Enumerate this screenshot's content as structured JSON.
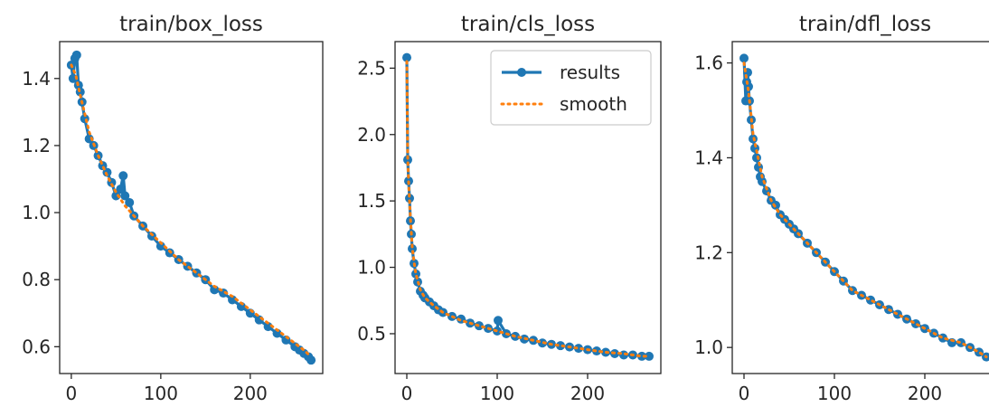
{
  "chart_data": [
    {
      "type": "line",
      "title": "train/box_loss",
      "xlabel": "",
      "ylabel": "",
      "xlim": [
        -13,
        281
      ],
      "ylim": [
        0.52,
        1.51
      ],
      "xticks": [
        0,
        100,
        200
      ],
      "yticks": [
        0.6,
        0.8,
        1.0,
        1.2,
        1.4
      ],
      "ytick_labels": [
        "0.6",
        "0.8",
        "1.0",
        "1.2",
        "1.4"
      ],
      "legend": null,
      "series": [
        {
          "name": "results",
          "style": "line-with-markers",
          "x": [
            0,
            2,
            4,
            6,
            8,
            10,
            12,
            15,
            20,
            25,
            30,
            35,
            40,
            45,
            50,
            55,
            58,
            60,
            65,
            70,
            80,
            90,
            100,
            110,
            120,
            130,
            140,
            150,
            160,
            170,
            180,
            190,
            200,
            210,
            220,
            230,
            240,
            250,
            255,
            260,
            265,
            268
          ],
          "y": [
            1.44,
            1.4,
            1.46,
            1.47,
            1.38,
            1.36,
            1.33,
            1.28,
            1.22,
            1.2,
            1.17,
            1.14,
            1.12,
            1.09,
            1.05,
            1.07,
            1.11,
            1.05,
            1.03,
            0.99,
            0.96,
            0.93,
            0.9,
            0.88,
            0.86,
            0.84,
            0.82,
            0.8,
            0.77,
            0.76,
            0.74,
            0.72,
            0.7,
            0.68,
            0.66,
            0.64,
            0.62,
            0.6,
            0.59,
            0.58,
            0.57,
            0.56
          ]
        },
        {
          "name": "smooth",
          "style": "dotted",
          "x": [
            0,
            5,
            10,
            20,
            30,
            40,
            50,
            60,
            80,
            100,
            120,
            140,
            160,
            180,
            200,
            220,
            240,
            260,
            268
          ],
          "y": [
            1.44,
            1.41,
            1.35,
            1.24,
            1.17,
            1.11,
            1.06,
            1.02,
            0.96,
            0.91,
            0.86,
            0.82,
            0.78,
            0.75,
            0.71,
            0.67,
            0.63,
            0.59,
            0.57
          ]
        }
      ]
    },
    {
      "type": "line",
      "title": "train/cls_loss",
      "xlabel": "",
      "ylabel": "",
      "xlim": [
        -13,
        281
      ],
      "ylim": [
        0.2,
        2.7
      ],
      "xticks": [
        0,
        100,
        200
      ],
      "yticks": [
        0.5,
        1.0,
        1.5,
        2.0,
        2.5
      ],
      "ytick_labels": [
        "0.5",
        "1.0",
        "1.5",
        "2.0",
        "2.5"
      ],
      "legend": {
        "position": "upper right",
        "entries": [
          "results",
          "smooth"
        ]
      },
      "series": [
        {
          "name": "results",
          "style": "line-with-markers",
          "x": [
            0,
            1,
            2,
            3,
            4,
            5,
            6,
            8,
            10,
            12,
            15,
            18,
            20,
            25,
            30,
            35,
            40,
            50,
            60,
            70,
            80,
            90,
            100,
            101,
            110,
            120,
            130,
            140,
            150,
            160,
            170,
            180,
            190,
            200,
            210,
            220,
            230,
            240,
            250,
            260,
            268
          ],
          "y": [
            2.58,
            1.81,
            1.65,
            1.52,
            1.35,
            1.25,
            1.14,
            1.03,
            0.95,
            0.89,
            0.82,
            0.79,
            0.77,
            0.74,
            0.71,
            0.68,
            0.66,
            0.63,
            0.61,
            0.58,
            0.56,
            0.54,
            0.52,
            0.6,
            0.5,
            0.48,
            0.46,
            0.45,
            0.43,
            0.42,
            0.41,
            0.4,
            0.39,
            0.38,
            0.37,
            0.36,
            0.35,
            0.34,
            0.34,
            0.33,
            0.33
          ]
        },
        {
          "name": "smooth",
          "style": "dotted",
          "x": [
            0,
            1,
            2,
            4,
            6,
            8,
            10,
            15,
            20,
            30,
            40,
            60,
            80,
            100,
            120,
            140,
            160,
            180,
            200,
            220,
            240,
            260,
            268
          ],
          "y": [
            2.55,
            1.82,
            1.64,
            1.37,
            1.15,
            1.04,
            0.95,
            0.83,
            0.77,
            0.71,
            0.66,
            0.6,
            0.56,
            0.52,
            0.48,
            0.45,
            0.42,
            0.4,
            0.38,
            0.36,
            0.35,
            0.33,
            0.33
          ]
        }
      ]
    },
    {
      "type": "line",
      "title": "train/dfl_loss",
      "xlabel": "",
      "ylabel": "",
      "xlim": [
        -13,
        281
      ],
      "ylim": [
        0.945,
        1.645
      ],
      "xticks": [
        0,
        100,
        200
      ],
      "yticks": [
        1.0,
        1.2,
        1.4,
        1.6
      ],
      "ytick_labels": [
        "1.0",
        "1.2",
        "1.4",
        "1.6"
      ],
      "legend": null,
      "series": [
        {
          "name": "results",
          "style": "line-with-markers",
          "x": [
            0,
            2,
            3,
            4,
            5,
            6,
            8,
            10,
            12,
            14,
            16,
            18,
            20,
            25,
            30,
            35,
            40,
            45,
            50,
            55,
            60,
            70,
            80,
            90,
            100,
            110,
            120,
            130,
            140,
            150,
            160,
            170,
            180,
            190,
            200,
            210,
            220,
            230,
            240,
            250,
            260,
            268
          ],
          "y": [
            1.61,
            1.52,
            1.56,
            1.58,
            1.55,
            1.52,
            1.48,
            1.44,
            1.42,
            1.4,
            1.38,
            1.36,
            1.35,
            1.33,
            1.31,
            1.3,
            1.28,
            1.27,
            1.26,
            1.25,
            1.24,
            1.22,
            1.2,
            1.18,
            1.16,
            1.14,
            1.12,
            1.11,
            1.1,
            1.09,
            1.08,
            1.07,
            1.06,
            1.05,
            1.04,
            1.03,
            1.02,
            1.01,
            1.01,
            1.0,
            0.99,
            0.98
          ]
        },
        {
          "name": "smooth",
          "style": "dotted",
          "x": [
            0,
            5,
            10,
            20,
            30,
            40,
            50,
            60,
            80,
            100,
            120,
            140,
            160,
            180,
            200,
            220,
            240,
            260,
            268
          ],
          "y": [
            1.6,
            1.54,
            1.45,
            1.36,
            1.31,
            1.28,
            1.26,
            1.24,
            1.2,
            1.16,
            1.12,
            1.1,
            1.08,
            1.06,
            1.04,
            1.02,
            1.01,
            0.99,
            0.98
          ]
        }
      ]
    }
  ],
  "colors": {
    "results": "#1f77b4",
    "smooth": "#ff7f0e",
    "axes": "#262626",
    "background": "#ffffff"
  }
}
